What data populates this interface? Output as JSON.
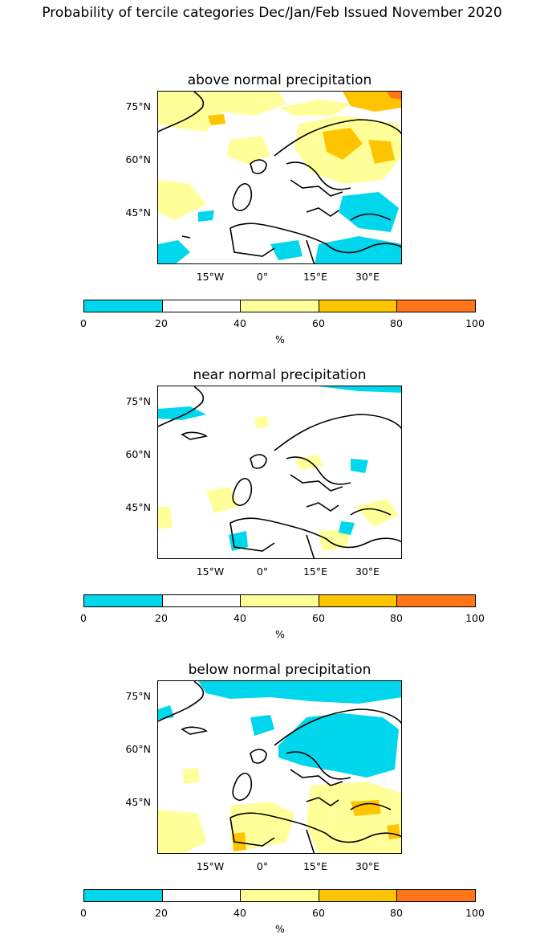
{
  "title": "Probability of tercile categories Dec/Jan/Feb Issued November 2020",
  "panels": [
    {
      "title": "above normal precipitation",
      "pattern": "above"
    },
    {
      "title": "near normal precipitation",
      "pattern": "near"
    },
    {
      "title": "below normal precipitation",
      "pattern": "below"
    }
  ],
  "lat_labels": [
    "75°N",
    "60°N",
    "45°N"
  ],
  "lon_labels": [
    "15°W",
    "0°",
    "15°E",
    "30°E"
  ],
  "colorbar": {
    "colors": [
      "#00d7ec",
      "#ffffff",
      "#ffff99",
      "#ffc400",
      "#ff7518"
    ],
    "ticks": [
      "0",
      "20",
      "40",
      "60",
      "80",
      "100"
    ],
    "unit": "%"
  }
}
